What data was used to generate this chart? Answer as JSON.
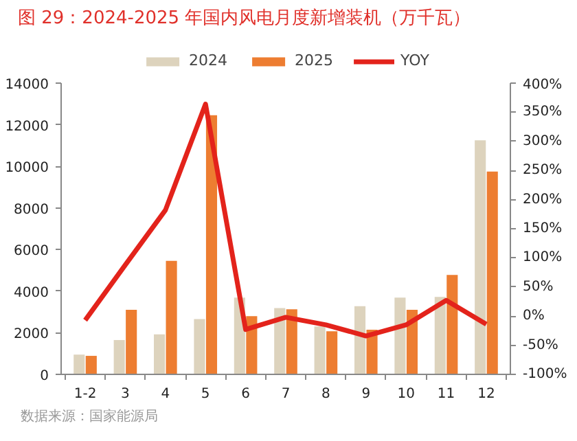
{
  "chart_data": {
    "type": "bar",
    "title": "图 29：2024-2025 年国内风电月度新增装机（万千瓦）",
    "categories": [
      "1-2",
      "3",
      "4",
      "5",
      "6",
      "7",
      "8",
      "9",
      "10",
      "11",
      "12"
    ],
    "series": [
      {
        "name": "2024",
        "color": "#ddd3bd",
        "values": [
          950,
          1650,
          1920,
          2660,
          3690,
          3190,
          2300,
          3280,
          3690,
          3720,
          11250
        ]
      },
      {
        "name": "2025",
        "color": "#ed7d31",
        "values": [
          890,
          3100,
          5460,
          12460,
          2800,
          3130,
          2070,
          2150,
          3100,
          4780,
          9750
        ]
      },
      {
        "name": "YOY",
        "type": "line",
        "axis": "y2",
        "color": "#e3231b",
        "values": [
          -7,
          88,
          182,
          364,
          -23,
          -2,
          -15,
          -34,
          -15,
          27,
          -14
        ]
      }
    ],
    "ylim": [
      0,
      14000
    ],
    "yticks": [
      0,
      2000,
      4000,
      6000,
      8000,
      10000,
      12000,
      14000
    ],
    "y2lim": [
      -100,
      400
    ],
    "y2ticks": [
      {
        "value": -100,
        "label": "-100%"
      },
      {
        "value": -50,
        "label": "-50%"
      },
      {
        "value": 0,
        "label": "0%"
      },
      {
        "value": 50,
        "label": "50%"
      },
      {
        "value": 100,
        "label": "100%"
      },
      {
        "value": 150,
        "label": "150%"
      },
      {
        "value": 200,
        "label": "200%"
      },
      {
        "value": 250,
        "label": "250%"
      },
      {
        "value": 300,
        "label": "300%"
      },
      {
        "value": 350,
        "label": "350%"
      },
      {
        "value": 400,
        "label": "400%"
      }
    ],
    "legend": "top",
    "grid": false,
    "annotations": [
      "数据来源：国家能源局"
    ]
  }
}
